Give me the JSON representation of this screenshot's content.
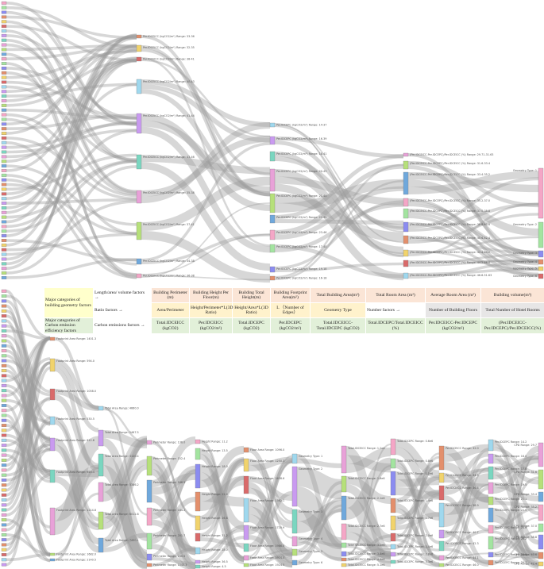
{
  "palette": [
    "#f4a6c6",
    "#a3e4a0",
    "#8b8cf0",
    "#e38f6c",
    "#f1d36c",
    "#d96a6a",
    "#9fd8ee",
    "#c99af0",
    "#7ad6c0",
    "#e8a1d8",
    "#b6e07a",
    "#6fa8dc"
  ],
  "top_sankey": {
    "columns": [
      {
        "nodes": [
          "Per.IDCEICC (kgCO2/m²) Range: 33-36",
          "Per.IDCEICC (kgCO2/m²) Range: 32-35",
          "Per.IDCEICC (kgCO2/m²) Range: 38-41",
          "Per.IDCEICC (kgCO2/m²) Range: 40-43",
          "Per.IDCEICC (kgCO2/m²) Range: 41-44",
          "Per.IDCEICC (kgCO2/m²) Range: 43-46",
          "Per.IDCEICC (kgCO2/m²) Range: 35-38",
          "Per.IDCEICC (kgCO2/m²) Range: 37-41",
          "Per.IDCEICC (kgCO2/m²) Range: 34-38",
          "Per.IDCEICC (kgCO2/m²) Range: 36-38"
        ]
      },
      {
        "nodes": [
          "Per.IDCEPC (kgCO2/m²) Range: 14-37",
          "Per.IDCEPC (kgCO2/m²) Range: 16-39",
          "Per.IDCEPC (kgCO2/m²) Range: 18-41",
          "Per.IDCEPC (kgCO2/m²) Range: 20-43",
          "Per.IDCEPC (kgCO2/m²) Range: 21-44",
          "Per.IDCEPC (kgCO2/m²) Range: 22-45",
          "Per.IDCEPC (kgCO2/m²) Range: 23-46",
          "Per.IDCEPC (kgCO2/m²) Range: 17-40",
          "Per.IDCEPC (kgCO2/m²) Range: 19-18",
          "Per.IDCEPC (kgCO2/m²) Range: 16-18"
        ]
      },
      {
        "nodes": [
          "(Per.IDCEICC-Per.IDCEPC)/Per.IDCEICC (%) Range: 29.71-31.63",
          "(Per.IDCEICC-Per.IDCEPC)/Per.IDCEICC (%) Range: 31.6-33.4",
          "(Per.IDCEICC-Per.IDCEPC)/Per.IDCEICC (%) Range: 33.4-35.2",
          "(Per.IDCEICC-Per.IDCEPC)/Per.IDCEICC (%) Range: 35.2-37.0",
          "(Per.IDCEICC-Per.IDCEPC)/Per.IDCEICC (%) Range: 37.0-38.8",
          "(Per.IDCEICC-Per.IDCEPC)/Per.IDCEICC (%) Range: 38.8-40.6",
          "(Per.IDCEICC-Per.IDCEPC)/Per.IDCEICC (%) Range: 40.6-42.4",
          "(Per.IDCEICC-Per.IDCEPC)/Per.IDCEICC (%) Range: 42.4-44.2",
          "(Per.IDCEICC-Per.IDCEPC)/Per.IDCEICC (%) Range: 44.2-46.0",
          "(Per.IDCEICC-Per.IDCEPC)/Per.IDCEICC (%) Range: 46.8-51.63"
        ]
      },
      {
        "nodes": [
          "Geometry Type: 1",
          "Geometry Type: 2",
          "Geometry Type: 3",
          "Geometry Type: 4",
          "Geometry Type: 5",
          "Geometry Type: 6"
        ]
      }
    ]
  },
  "table": {
    "geometry_heading": "Major categories of building geometry factors",
    "carbon_heading": "Major categories of Carbon emission efficiency factors",
    "row1": [
      "Length/area/ volume factors →",
      "Building Perimeter (m)",
      "Building Height Per Floor(m)",
      "Building Total Height(m)",
      "Building Footprint Area(m²)",
      "Total Building Area(m²)",
      "Total Room Area (m²)",
      "Average Room Area (m²)",
      "Building volume(m³)"
    ],
    "row2": [
      "Ratio factors →",
      "Area/Perimeter",
      "Height/Perimeter*L(3D Ratio)",
      "Height/Area*L(3D Ratio)",
      "L （Number of Edges）",
      "Geometry Type",
      "Number factors →",
      "Number of Building Floors",
      "Total Number of Hotel Rooms"
    ],
    "row3": [
      "Carbon emissions factors →",
      "Total.IDCEICC (kgCO2)",
      "Per.IDCEICC (kgCO2/m²)",
      "Total.IDCEPC (kgCO2)",
      "Per.IDCEPC (kgCO2/m²)",
      "Total.IDCEICC-Total.IDCEPC (kgCO2)",
      "Total.IDCEPC/Total.IDCEICC (%)",
      "Per.IDCEICC-Per.IDCEPC (kgCO2/m²)",
      "(Per.IDCEICC-Per.IDCEPC)/Per.IDCEICC(%)"
    ]
  },
  "bottom_sankey": {
    "columns": [
      {
        "nodes": [
          "Footprint Area Range: 1401.3",
          "Footprint Area Range: 594.0",
          "Footprint Area Range: 1058.0",
          "Footprint Area Range: 530.5",
          "Footprint Area Range: 812.6",
          "Footprint Area Range: 920.4",
          "Footprint Area Range: 1214.8",
          "Footprint Area Range: 1682.0",
          "Footprint Area Range: 2140.5"
        ]
      },
      {
        "nodes": [
          "Total Area Range: 4660.0",
          "Total Area Range: 2467.5",
          "Total Area Range: 3120.4",
          "Total Area Range: 5386.2",
          "Total Area Range: 6012.8",
          "Total Area Range: 7450.1"
        ]
      },
      {
        "nodes": [
          "Perimeter Range: 136.0",
          "Perimeter Range: 152.4",
          "Perimeter Range: 168.9",
          "Perimeter Range: 184.2",
          "Perimeter Range: 201.7",
          "Perimeter Range: 230.5",
          "Perimeter Range: 1540.3"
        ]
      },
      {
        "nodes": [
          "Height Range: 11.2",
          "Height Range: 13.5",
          "Height Range: 18.0",
          "Height Range: 22.4",
          "Height Range: 26.8",
          "Height Range: 31.2",
          "Height Range: 28.0",
          "Height Range: 36.5",
          "Height Range: 4.5"
        ]
      },
      {
        "nodes": [
          "Floor Area Range: 1096.0",
          "Floor Area Range: 1250.3",
          "Floor Area Range: 1408.6",
          "Floor Area Range: 1562.1",
          "Floor Area Range: 1720.9",
          "Floor Area Range: 1986.5",
          "Floor Area Range: 1924.0",
          "Floor Area Range: 1924.5"
        ]
      },
      {
        "nodes": [
          "Geometry Type: 1",
          "Geometry Type: 2",
          "Geometry Type: 3",
          "Geometry Type: 4",
          "Geometry Type: 5",
          "Geometry Type: 6"
        ]
      },
      {
        "nodes": [
          "Total.IDCEICC Range: 1.2e6",
          "Total.IDCEICC Range: 1.6e6",
          "Total.IDCEICC Range: 2.1e6",
          "Total.IDCEICC Range: 2.7e6",
          "Total.IDCEICC Range: 3.2e6",
          "Total.IDCEICC Range: 3.8e6",
          "Total.IDCEICC Range: 4.4e6",
          "Total.IDCEICC Range: 5.1e6"
        ]
      },
      {
        "nodes": [
          "Total.IDCEPC Range: 0.6e6",
          "Total.IDCEPC Range: 0.8e6",
          "Total.IDCEPC Range: 1.1e6",
          "Total.IDCEPC Range: 1.4e6",
          "Total.IDCEPC Range: 1.7e6",
          "Total.IDCEPC Range: 2.0e6",
          "Total.IDCEPC Range: 2.4e6",
          "Total.IDCEPC Range: 2.8e6",
          "Total.IDCEPC Range: 3.3e6"
        ]
      },
      {
        "nodes": [
          "Per.IDCEICC Range: 32.0",
          "Per.IDCEICC Range: 34.5",
          "Per.IDCEICC Range: 36.8",
          "Per.IDCEICC Range: 38.9",
          "Per.IDCEICC Range: 40.7",
          "Per.IDCEICC Range: 42.3",
          "Per.IDCEICC Range: 44.1",
          "Per.IDCEICC Range: 46.0"
        ]
      },
      {
        "nodes": [
          "Per.IDCEPC Range: 14.2",
          "Per.IDCEPC Range: 16.0",
          "Per.IDCEPC Range: 17.8",
          "Per.IDCEPC Range: 19.5",
          "Per.IDCEPC Range: 21.1",
          "Per.IDCEPC Range: 22.9",
          "Per.IDCEPC Range: 24.6",
          "Per.IDCEPC Range: 26.2",
          "Per.IDCEPC Range: 28.0",
          "Per.IDCEPC Range: 29.7"
        ]
      },
      {
        "nodes": [
          "CPD Range: 29.7",
          "CPD Range: 31.6",
          "CPD Range: 33.4",
          "CPD Range: 35.2",
          "CPD Range: 37.0",
          "CPD Range: 38.8",
          "CPD Range: 40.6",
          "CPD Range: 42.4"
        ]
      }
    ]
  }
}
